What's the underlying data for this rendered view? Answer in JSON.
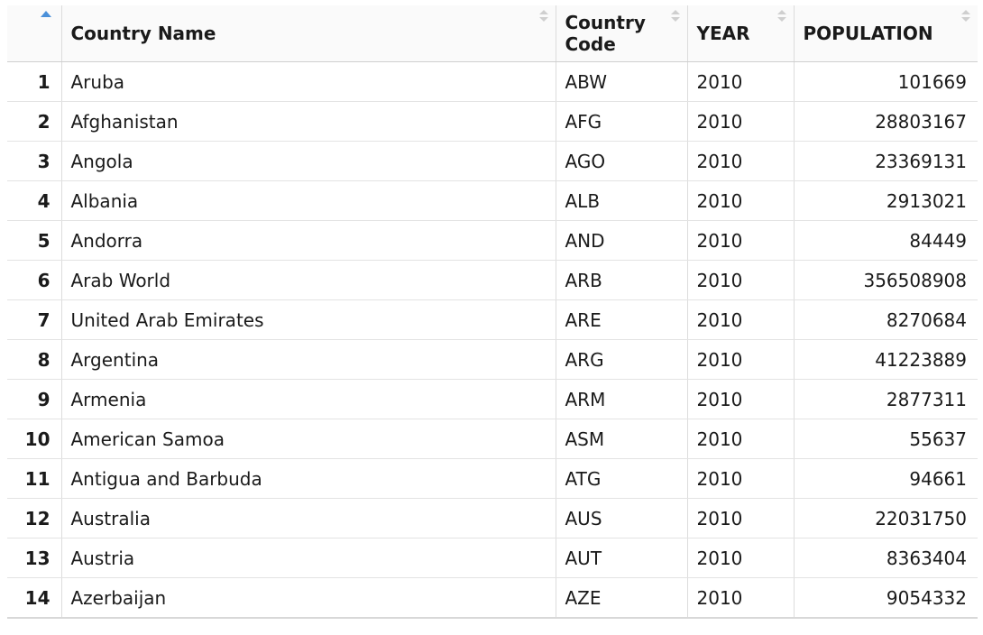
{
  "table": {
    "columns": [
      "Country Name",
      "Country Code",
      "YEAR",
      "POPULATION"
    ],
    "sort": {
      "column": "index",
      "direction": "ascending"
    },
    "rows": [
      {
        "index": "1",
        "name": "Aruba",
        "code": "ABW",
        "year": "2010",
        "population": "101669"
      },
      {
        "index": "2",
        "name": "Afghanistan",
        "code": "AFG",
        "year": "2010",
        "population": "28803167"
      },
      {
        "index": "3",
        "name": "Angola",
        "code": "AGO",
        "year": "2010",
        "population": "23369131"
      },
      {
        "index": "4",
        "name": "Albania",
        "code": "ALB",
        "year": "2010",
        "population": "2913021"
      },
      {
        "index": "5",
        "name": "Andorra",
        "code": "AND",
        "year": "2010",
        "population": "84449"
      },
      {
        "index": "6",
        "name": "Arab World",
        "code": "ARB",
        "year": "2010",
        "population": "356508908"
      },
      {
        "index": "7",
        "name": "United Arab Emirates",
        "code": "ARE",
        "year": "2010",
        "population": "8270684"
      },
      {
        "index": "8",
        "name": "Argentina",
        "code": "ARG",
        "year": "2010",
        "population": "41223889"
      },
      {
        "index": "9",
        "name": "Armenia",
        "code": "ARM",
        "year": "2010",
        "population": "2877311"
      },
      {
        "index": "10",
        "name": "American Samoa",
        "code": "ASM",
        "year": "2010",
        "population": "55637"
      },
      {
        "index": "11",
        "name": "Antigua and Barbuda",
        "code": "ATG",
        "year": "2010",
        "population": "94661"
      },
      {
        "index": "12",
        "name": "Australia",
        "code": "AUS",
        "year": "2010",
        "population": "22031750"
      },
      {
        "index": "13",
        "name": "Austria",
        "code": "AUT",
        "year": "2010",
        "population": "8363404"
      },
      {
        "index": "14",
        "name": "Azerbaijan",
        "code": "AZE",
        "year": "2010",
        "population": "9054332"
      }
    ]
  },
  "icons": {
    "sort_active": "sort-ascending-icon",
    "sort_inactive": "sort-icon"
  },
  "colors": {
    "sort_active": "#4a90d9",
    "header_bg": "#fafafa",
    "grid": "#dcdcdc"
  }
}
